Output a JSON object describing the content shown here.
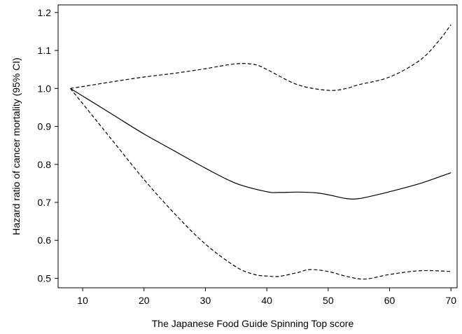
{
  "chart_data": {
    "type": "line",
    "title": "",
    "xlabel": "The Japanese Food Guide Spinning Top score",
    "ylabel": "Hazard ratio of cancer mortality (95% CI)",
    "xlim": [
      6,
      71
    ],
    "ylim": [
      0.475,
      1.22
    ],
    "x_ticks": [
      10,
      20,
      30,
      40,
      50,
      60,
      70
    ],
    "y_ticks": [
      0.5,
      0.6,
      0.7,
      0.8,
      0.9,
      1.0,
      1.1,
      1.2
    ],
    "y_tick_labels": [
      "0.5",
      "0.6",
      "0.7",
      "0.8",
      "0.9",
      "1.0",
      "1.1",
      "1.2"
    ],
    "grid": false,
    "series": [
      {
        "style": "solid",
        "x": [
          8,
          10,
          15,
          20,
          25,
          30,
          35,
          40,
          42,
          45,
          48,
          50,
          53,
          55,
          58,
          60,
          65,
          70
        ],
        "values": [
          1.0,
          0.98,
          0.93,
          0.88,
          0.835,
          0.79,
          0.75,
          0.728,
          0.726,
          0.727,
          0.725,
          0.72,
          0.71,
          0.71,
          0.72,
          0.728,
          0.75,
          0.778
        ]
      },
      {
        "style": "dashed",
        "x": [
          8,
          10,
          15,
          20,
          25,
          30,
          35,
          38,
          40,
          45,
          50,
          53,
          55,
          60,
          65,
          68,
          70
        ],
        "values": [
          1.0,
          1.005,
          1.018,
          1.03,
          1.04,
          1.052,
          1.065,
          1.063,
          1.05,
          1.01,
          0.995,
          1.0,
          1.01,
          1.03,
          1.075,
          1.125,
          1.168
        ]
      },
      {
        "style": "dashed",
        "x": [
          8,
          10,
          13,
          15,
          20,
          25,
          30,
          35,
          38,
          40,
          42,
          45,
          47,
          50,
          53,
          56,
          60,
          65,
          70
        ],
        "values": [
          1.0,
          0.96,
          0.9,
          0.86,
          0.76,
          0.67,
          0.59,
          0.53,
          0.51,
          0.506,
          0.505,
          0.515,
          0.523,
          0.518,
          0.505,
          0.498,
          0.51,
          0.52,
          0.518
        ]
      }
    ]
  }
}
